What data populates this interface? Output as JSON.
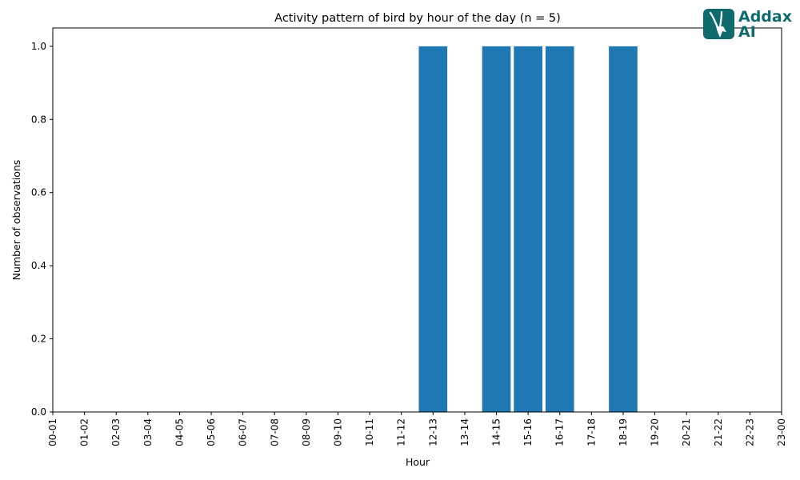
{
  "chart_data": {
    "type": "bar",
    "title": "Activity pattern of bird by hour of the day (n = 5)",
    "xlabel": "Hour",
    "ylabel": "Number of observations",
    "categories": [
      "00-01",
      "01-02",
      "02-03",
      "03-04",
      "04-05",
      "05-06",
      "06-07",
      "07-08",
      "08-09",
      "09-10",
      "10-11",
      "11-12",
      "12-13",
      "13-14",
      "14-15",
      "15-16",
      "16-17",
      "17-18",
      "18-19",
      "19-20",
      "20-21",
      "21-22",
      "22-23",
      "23-00"
    ],
    "values": [
      0,
      0,
      0,
      0,
      0,
      0,
      0,
      0,
      0,
      0,
      0,
      0,
      1,
      0,
      1,
      1,
      1,
      0,
      1,
      0,
      0,
      0,
      0,
      0
    ],
    "ylim": [
      0,
      1.05
    ],
    "yticks": [
      "0.0",
      "0.2",
      "0.4",
      "0.6",
      "0.8",
      "1.0"
    ],
    "bar_color": "#1f77b4",
    "grid": false,
    "legend": "none"
  },
  "logo": {
    "line1": "Addax",
    "line2": "AI",
    "color": "#0f6b6b",
    "icon": "addax-antelope-icon"
  }
}
